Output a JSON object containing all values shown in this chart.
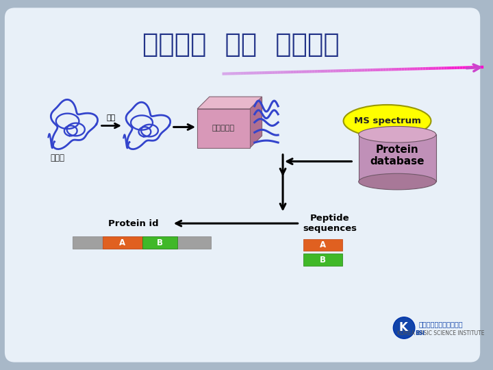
{
  "title": "단백질의  질량  스펙트럼",
  "bg_color": "#e8f0f8",
  "bg_outer": "#a8b8c8",
  "enzyme_label": "효소",
  "ms_box_label": "질량분석기",
  "ms_box_color": "#d898b8",
  "ms_box_top": "#e8b8cc",
  "ms_box_side": "#b07090",
  "ms_spectrum_label": "MS spectrum",
  "ms_spectrum_color": "#ffff00",
  "protein_db_label": "Protein\ndatabase",
  "protein_db_body": "#c090b8",
  "protein_db_top": "#d8a8c8",
  "protein_db_bottom": "#a87898",
  "protein_label": "단백질",
  "protein_id_label": "Protein id",
  "peptide_seq_label": "Peptide\nsequences",
  "label_A": "A",
  "label_B": "B",
  "orange_color": "#e06020",
  "green_color": "#40b828",
  "gray_color": "#a0a0a0",
  "title_color": "#223388",
  "text_color": "#111111"
}
